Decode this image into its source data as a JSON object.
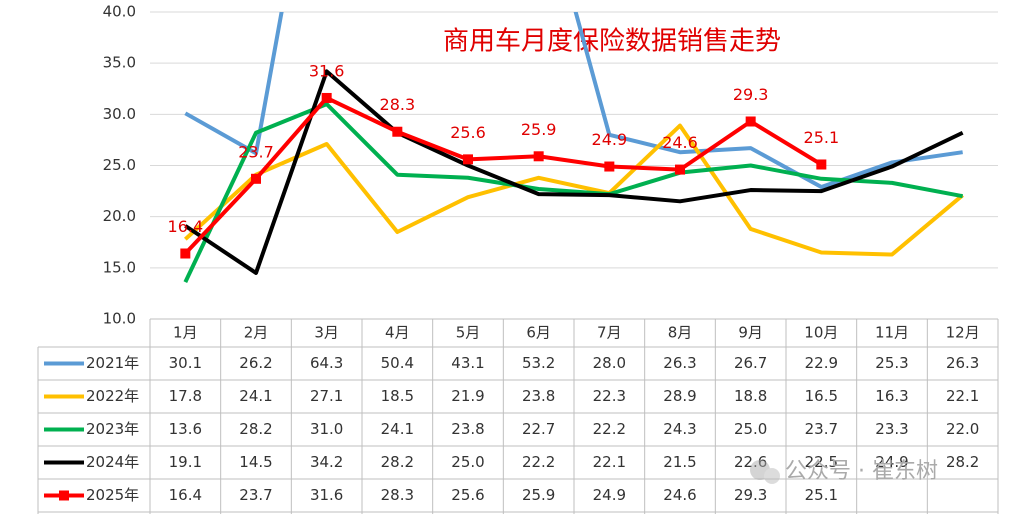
{
  "chart_data": {
    "type": "line",
    "title": "商用车月度保险数据销售走势",
    "categories": [
      "1月",
      "2月",
      "3月",
      "4月",
      "5月",
      "6月",
      "7月",
      "8月",
      "9月",
      "10月",
      "11月",
      "12月"
    ],
    "ylim": [
      10,
      40
    ],
    "yticks": [
      {
        "value": 10,
        "label": "10.0"
      },
      {
        "value": 15,
        "label": "15.0"
      },
      {
        "value": 20,
        "label": "20.0"
      },
      {
        "value": 25,
        "label": "25.0"
      },
      {
        "value": 30,
        "label": "30.0"
      },
      {
        "value": 35,
        "label": "35.0"
      },
      {
        "value": 40,
        "label": "40.0"
      }
    ],
    "grid": true,
    "series": [
      {
        "name": "2021年",
        "color": "#5b9bd5",
        "values": [
          30.1,
          26.2,
          64.3,
          50.4,
          43.1,
          53.2,
          28.0,
          26.3,
          26.7,
          22.9,
          25.3,
          26.3
        ],
        "value_labels": [
          "30.1",
          "26.2",
          "64.3",
          "50.4",
          "43.1",
          "53.2",
          "28.0",
          "26.3",
          "26.7",
          "22.9",
          "25.3",
          "26.3"
        ]
      },
      {
        "name": "2022年",
        "color": "#ffc000",
        "values": [
          17.8,
          24.1,
          27.1,
          18.5,
          21.9,
          23.8,
          22.3,
          28.9,
          18.8,
          16.5,
          16.3,
          22.1
        ],
        "value_labels": [
          "17.8",
          "24.1",
          "27.1",
          "18.5",
          "21.9",
          "23.8",
          "22.3",
          "28.9",
          "18.8",
          "16.5",
          "16.3",
          "22.1"
        ]
      },
      {
        "name": "2023年",
        "color": "#00b050",
        "values": [
          13.6,
          28.2,
          31.0,
          24.1,
          23.8,
          22.7,
          22.2,
          24.3,
          25.0,
          23.7,
          23.3,
          22.0
        ],
        "value_labels": [
          "13.6",
          "28.2",
          "31.0",
          "24.1",
          "23.8",
          "22.7",
          "22.2",
          "24.3",
          "25.0",
          "23.7",
          "23.3",
          "22.0"
        ]
      },
      {
        "name": "2024年",
        "color": "#000000",
        "values": [
          19.1,
          14.5,
          34.2,
          28.2,
          25.0,
          22.2,
          22.1,
          21.5,
          22.6,
          22.5,
          24.9,
          28.2
        ],
        "value_labels": [
          "19.1",
          "14.5",
          "34.2",
          "28.2",
          "25.0",
          "22.2",
          "22.1",
          "21.5",
          "22.6",
          "22.5",
          "24.9",
          "28.2"
        ]
      },
      {
        "name": "2025年",
        "color": "#ff0000",
        "marker": "square",
        "data_labels": true,
        "values": [
          16.4,
          23.7,
          31.6,
          28.3,
          25.6,
          25.9,
          24.9,
          24.6,
          29.3,
          25.1,
          null,
          null
        ],
        "value_labels": [
          "16.4",
          "23.7",
          "31.6",
          "28.3",
          "25.6",
          "25.9",
          "24.9",
          "24.6",
          "29.3",
          "25.1",
          null,
          null
        ]
      }
    ],
    "watermark": "公众号 · 崔东树"
  }
}
